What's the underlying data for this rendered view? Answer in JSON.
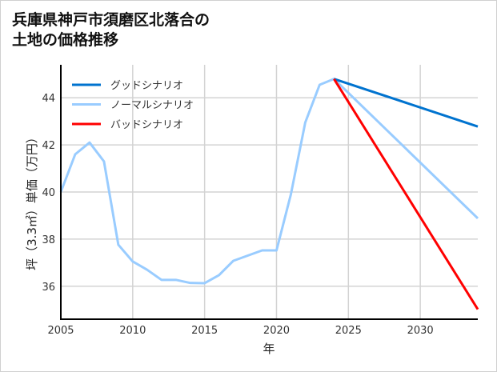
{
  "chart_data": {
    "type": "line",
    "title_lines": [
      "兵庫県神戸市須磨区北落合の",
      "土地の価格推移"
    ],
    "xlabel": "年",
    "ylabel": "坪（3.3㎡）単価（万円）",
    "xlim": [
      2005,
      2034
    ],
    "ylim": [
      34.6,
      45.4
    ],
    "xticks": [
      2005,
      2010,
      2015,
      2020,
      2025,
      2030
    ],
    "yticks": [
      36,
      38,
      40,
      42,
      44
    ],
    "grid": true,
    "legend_position": "top-left",
    "series": [
      {
        "name": "グッドシナリオ",
        "color": "#0073cf",
        "x": [
          2024,
          2034
        ],
        "values": [
          44.8,
          42.78
        ]
      },
      {
        "name": "ノーマルシナリオ",
        "color": "#99ccff",
        "x": [
          2005,
          2006,
          2007,
          2008,
          2009,
          2010,
          2011,
          2012,
          2013,
          2014,
          2015,
          2016,
          2017,
          2018,
          2019,
          2020,
          2021,
          2022,
          2023,
          2024,
          2034
        ],
        "values": [
          40.0,
          41.6,
          42.1,
          41.3,
          37.76,
          37.05,
          36.7,
          36.27,
          36.27,
          36.14,
          36.13,
          36.47,
          37.08,
          37.3,
          37.52,
          37.52,
          39.9,
          42.95,
          44.55,
          44.8,
          38.88
        ]
      },
      {
        "name": "バッドシナリオ",
        "color": "#ff0000",
        "x": [
          2024,
          2034
        ],
        "values": [
          44.8,
          35.02
        ]
      }
    ]
  }
}
